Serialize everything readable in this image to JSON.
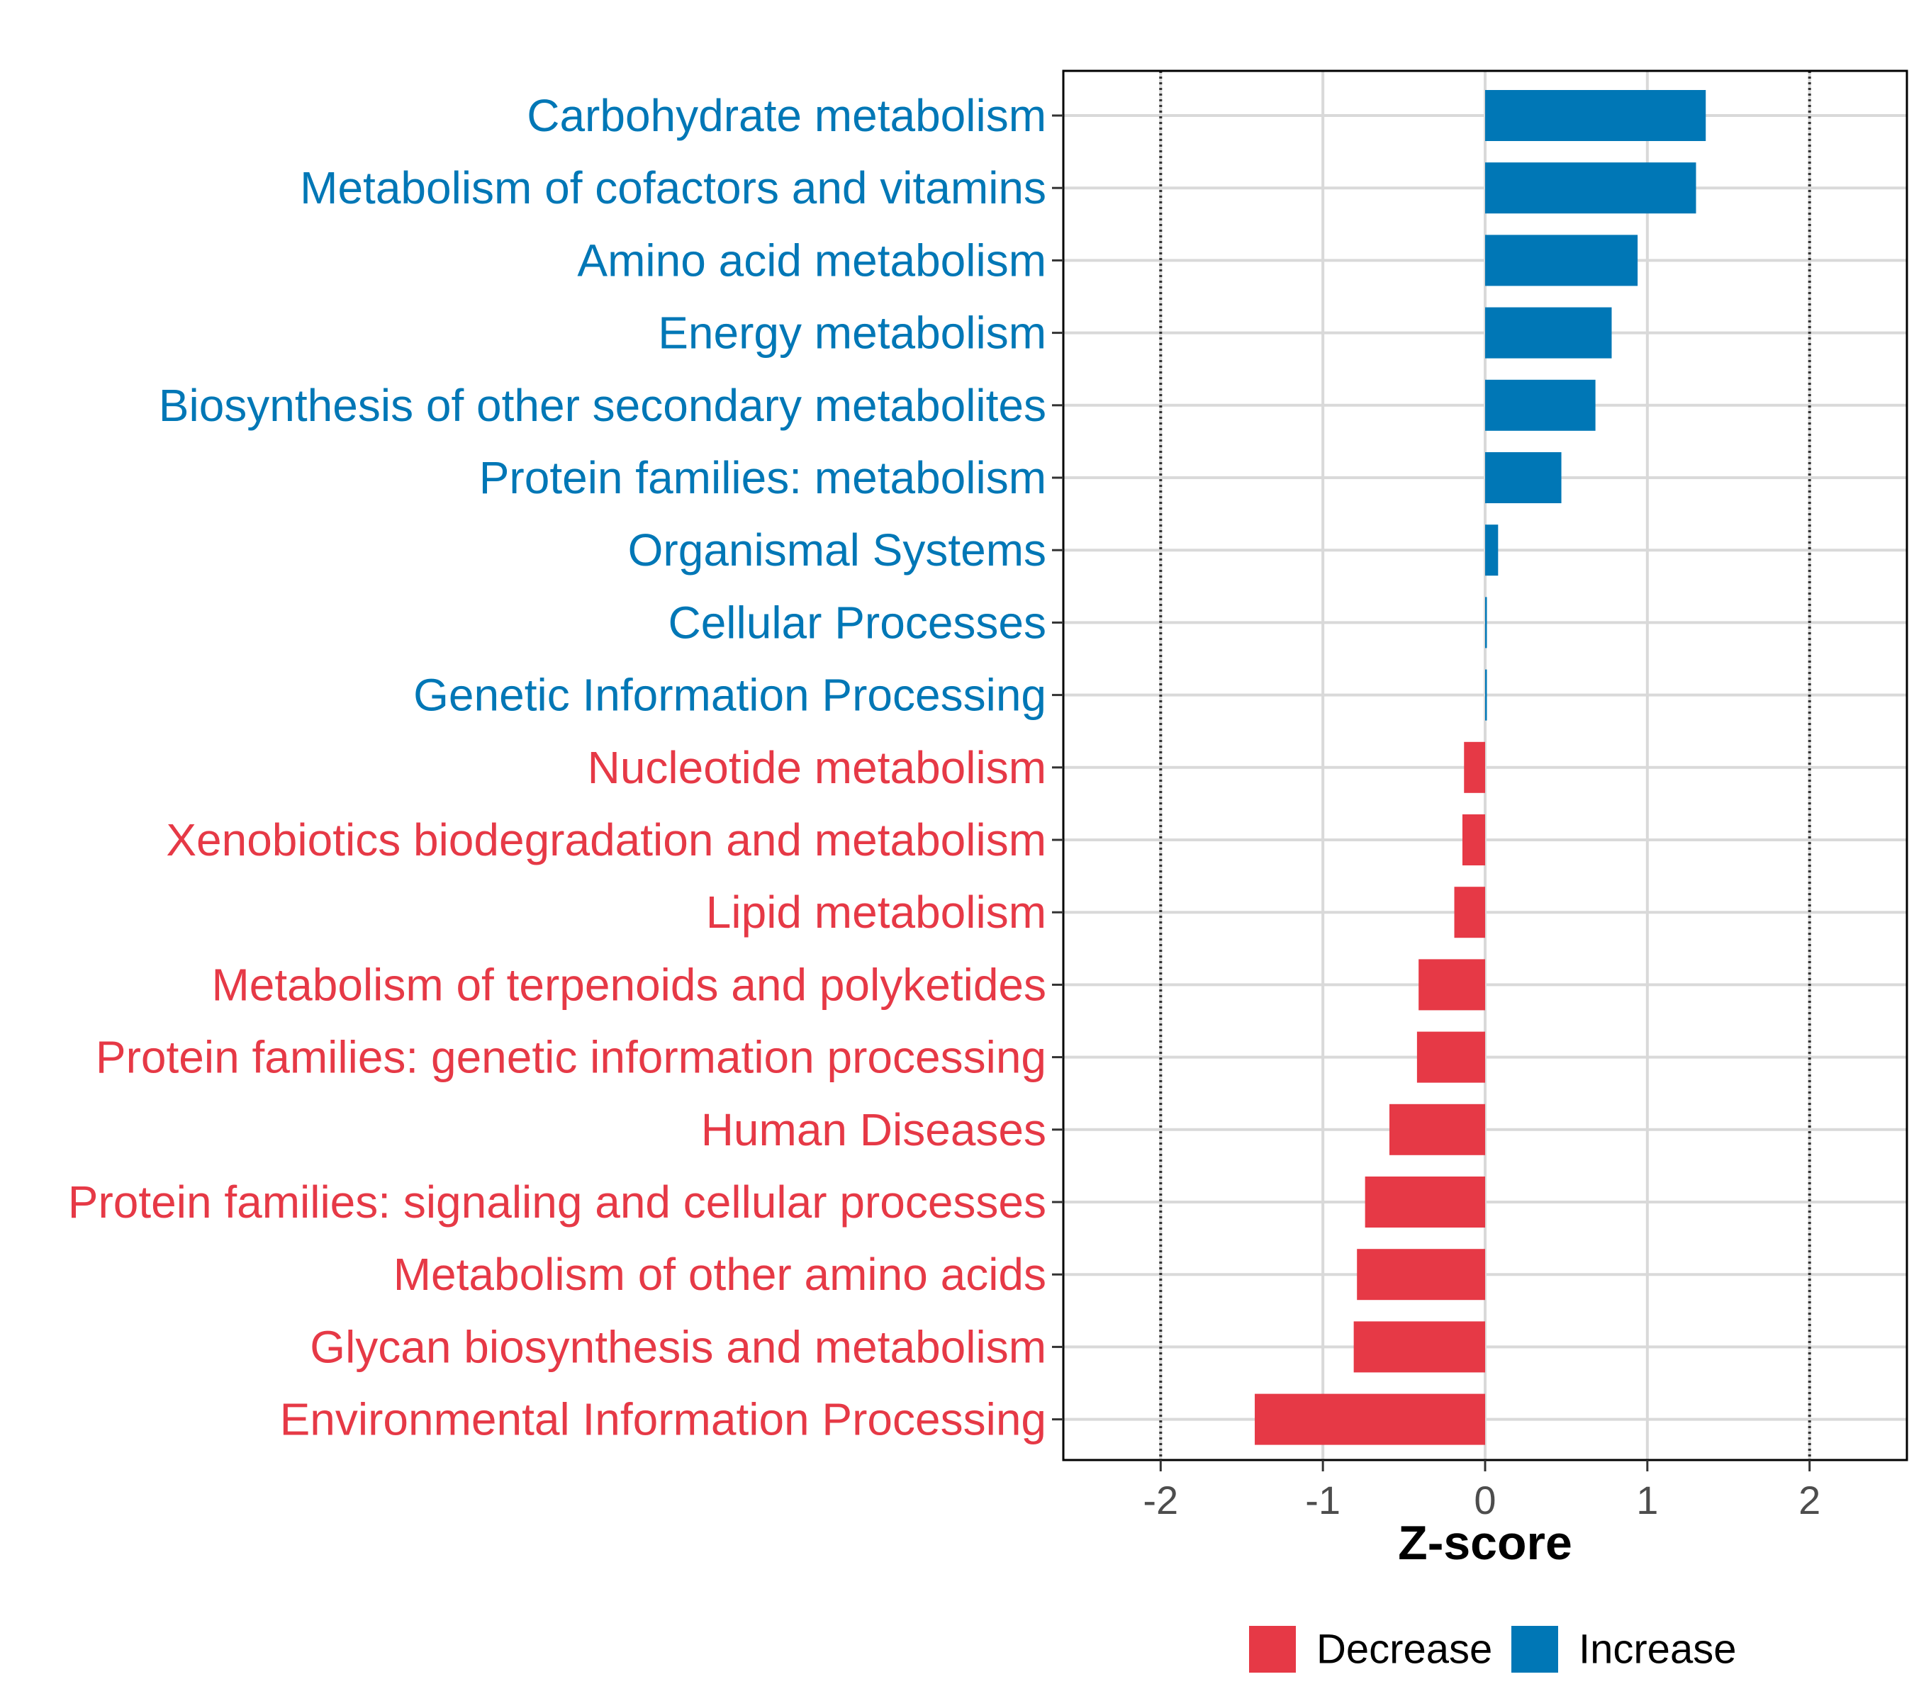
{
  "chart_data": {
    "type": "bar",
    "orientation": "horizontal",
    "title": "",
    "xlabel": "Z-score",
    "ylabel": "",
    "xlim": [
      -2.6,
      2.6
    ],
    "xticks": [
      -2,
      -1,
      0,
      1,
      2
    ],
    "tick_labels": [
      "-2",
      "-1",
      "0",
      "1",
      "2"
    ],
    "reference_lines": [
      -2,
      2
    ],
    "grid": true,
    "legend_position": "bottom",
    "colors": {
      "Decrease": "#e63946",
      "Increase": "#0077b6"
    },
    "legend": [
      {
        "label": "Decrease",
        "group": "Decrease"
      },
      {
        "label": "Increase",
        "group": "Increase"
      }
    ],
    "categories": [
      "Carbohydrate metabolism",
      "Metabolism of cofactors and vitamins",
      "Amino acid metabolism",
      "Energy metabolism",
      "Biosynthesis of other secondary metabolites",
      "Protein families: metabolism",
      "Organismal Systems",
      "Cellular Processes",
      "Genetic Information Processing",
      "Nucleotide metabolism",
      "Xenobiotics biodegradation and metabolism",
      "Lipid metabolism",
      "Metabolism of terpenoids and polyketides",
      "Protein families: genetic information processing",
      "Human Diseases",
      "Protein families: signaling and cellular processes",
      "Metabolism of other amino acids",
      "Glycan biosynthesis and metabolism",
      "Environmental Information Processing"
    ],
    "values": [
      1.36,
      1.3,
      0.94,
      0.78,
      0.68,
      0.47,
      0.08,
      0.01,
      0.01,
      -0.13,
      -0.14,
      -0.19,
      -0.41,
      -0.42,
      -0.59,
      -0.74,
      -0.79,
      -0.81,
      -1.42
    ],
    "groups": [
      "Increase",
      "Increase",
      "Increase",
      "Increase",
      "Increase",
      "Increase",
      "Increase",
      "Increase",
      "Increase",
      "Decrease",
      "Decrease",
      "Decrease",
      "Decrease",
      "Decrease",
      "Decrease",
      "Decrease",
      "Decrease",
      "Decrease",
      "Decrease"
    ]
  }
}
